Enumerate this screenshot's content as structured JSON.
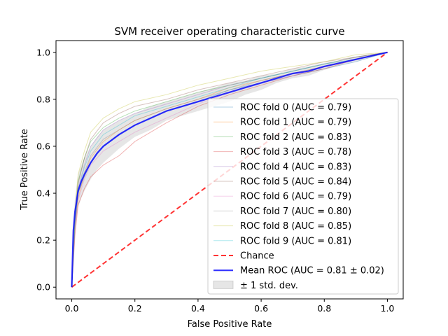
{
  "chart_data": {
    "type": "line",
    "title": "SVM receiver operating characteristic curve",
    "xlabel": "False Positive Rate",
    "ylabel": "True Positive Rate",
    "xlim": [
      -0.05,
      1.05
    ],
    "ylim": [
      -0.05,
      1.05
    ],
    "xticks": [
      "0.0",
      "0.2",
      "0.4",
      "0.6",
      "0.8",
      "1.0"
    ],
    "yticks": [
      "0.0",
      "0.2",
      "0.4",
      "0.6",
      "0.8",
      "1.0"
    ],
    "grid": false,
    "legend_position": "lower-right",
    "folds": [
      {
        "name": "ROC fold 0 (AUC = 0.79)",
        "color": "#1f77b4",
        "x": [
          0,
          0.01,
          0.02,
          0.04,
          0.06,
          0.1,
          0.15,
          0.2,
          0.3,
          0.4,
          0.5,
          0.6,
          0.7,
          0.8,
          0.9,
          1.0
        ],
        "y": [
          0,
          0.27,
          0.4,
          0.47,
          0.53,
          0.6,
          0.65,
          0.69,
          0.75,
          0.79,
          0.84,
          0.87,
          0.9,
          0.93,
          0.96,
          1.0
        ]
      },
      {
        "name": "ROC fold 1 (AUC = 0.79)",
        "color": "#ff7f0e",
        "x": [
          0,
          0.01,
          0.02,
          0.04,
          0.06,
          0.1,
          0.15,
          0.2,
          0.3,
          0.4,
          0.5,
          0.6,
          0.7,
          0.8,
          0.9,
          1.0
        ],
        "y": [
          0,
          0.25,
          0.38,
          0.48,
          0.55,
          0.62,
          0.67,
          0.71,
          0.76,
          0.8,
          0.85,
          0.88,
          0.91,
          0.94,
          0.97,
          1.0
        ]
      },
      {
        "name": "ROC fold 2 (AUC = 0.83)",
        "color": "#2ca02c",
        "x": [
          0,
          0.01,
          0.02,
          0.04,
          0.06,
          0.1,
          0.15,
          0.2,
          0.3,
          0.4,
          0.5,
          0.6,
          0.7,
          0.8,
          0.9,
          1.0
        ],
        "y": [
          0,
          0.3,
          0.45,
          0.55,
          0.62,
          0.68,
          0.72,
          0.75,
          0.79,
          0.83,
          0.86,
          0.89,
          0.92,
          0.95,
          0.98,
          1.0
        ]
      },
      {
        "name": "ROC fold 3 (AUC = 0.78)",
        "color": "#d62728",
        "x": [
          0,
          0.01,
          0.02,
          0.04,
          0.06,
          0.1,
          0.15,
          0.2,
          0.3,
          0.4,
          0.5,
          0.6,
          0.7,
          0.8,
          0.9,
          1.0
        ],
        "y": [
          0,
          0.22,
          0.35,
          0.42,
          0.47,
          0.52,
          0.56,
          0.62,
          0.7,
          0.77,
          0.82,
          0.86,
          0.9,
          0.93,
          0.97,
          1.0
        ]
      },
      {
        "name": "ROC fold 4 (AUC = 0.83)",
        "color": "#9467bd",
        "x": [
          0,
          0.01,
          0.02,
          0.04,
          0.06,
          0.1,
          0.15,
          0.2,
          0.3,
          0.4,
          0.5,
          0.6,
          0.7,
          0.8,
          0.9,
          1.0
        ],
        "y": [
          0,
          0.28,
          0.42,
          0.52,
          0.6,
          0.67,
          0.71,
          0.74,
          0.78,
          0.82,
          0.86,
          0.89,
          0.92,
          0.95,
          0.98,
          1.0
        ]
      },
      {
        "name": "ROC fold 5 (AUC = 0.84)",
        "color": "#8c564b",
        "x": [
          0,
          0.01,
          0.02,
          0.04,
          0.06,
          0.1,
          0.15,
          0.2,
          0.3,
          0.4,
          0.5,
          0.6,
          0.7,
          0.8,
          0.9,
          1.0
        ],
        "y": [
          0,
          0.29,
          0.44,
          0.55,
          0.63,
          0.7,
          0.74,
          0.77,
          0.8,
          0.84,
          0.87,
          0.9,
          0.93,
          0.96,
          0.98,
          1.0
        ]
      },
      {
        "name": "ROC fold 6 (AUC = 0.79)",
        "color": "#e377c2",
        "x": [
          0,
          0.01,
          0.02,
          0.04,
          0.06,
          0.1,
          0.15,
          0.2,
          0.3,
          0.4,
          0.5,
          0.6,
          0.7,
          0.8,
          0.9,
          1.0
        ],
        "y": [
          0,
          0.24,
          0.37,
          0.46,
          0.52,
          0.58,
          0.62,
          0.66,
          0.72,
          0.78,
          0.83,
          0.87,
          0.9,
          0.94,
          0.97,
          1.0
        ]
      },
      {
        "name": "ROC fold 7 (AUC = 0.80)",
        "color": "#7f7f7f",
        "x": [
          0,
          0.01,
          0.02,
          0.04,
          0.06,
          0.1,
          0.15,
          0.2,
          0.3,
          0.4,
          0.5,
          0.6,
          0.7,
          0.8,
          0.9,
          1.0
        ],
        "y": [
          0,
          0.26,
          0.4,
          0.49,
          0.56,
          0.63,
          0.67,
          0.71,
          0.76,
          0.8,
          0.84,
          0.88,
          0.91,
          0.94,
          0.97,
          1.0
        ]
      },
      {
        "name": "ROC fold 8 (AUC = 0.85)",
        "color": "#bcbd22",
        "x": [
          0,
          0.01,
          0.02,
          0.04,
          0.06,
          0.1,
          0.15,
          0.2,
          0.3,
          0.4,
          0.5,
          0.6,
          0.7,
          0.8,
          0.9,
          1.0
        ],
        "y": [
          0,
          0.32,
          0.48,
          0.58,
          0.66,
          0.72,
          0.76,
          0.79,
          0.82,
          0.86,
          0.89,
          0.92,
          0.94,
          0.96,
          0.99,
          1.0
        ]
      },
      {
        "name": "ROC fold 9 (AUC = 0.81)",
        "color": "#17becf",
        "x": [
          0,
          0.01,
          0.02,
          0.04,
          0.06,
          0.1,
          0.15,
          0.2,
          0.3,
          0.4,
          0.5,
          0.6,
          0.7,
          0.8,
          0.9,
          1.0
        ],
        "y": [
          0,
          0.27,
          0.41,
          0.51,
          0.58,
          0.65,
          0.69,
          0.73,
          0.77,
          0.81,
          0.85,
          0.89,
          0.92,
          0.95,
          0.97,
          1.0
        ]
      }
    ],
    "chance": {
      "name": "Chance",
      "color": "#ff0000",
      "x": [
        0,
        1
      ],
      "y": [
        0,
        1
      ]
    },
    "mean_roc": {
      "name": "Mean ROC (AUC = 0.81 ± 0.02)",
      "color": "#0000ff",
      "x": [
        0,
        0.005,
        0.01,
        0.02,
        0.03,
        0.04,
        0.06,
        0.08,
        0.1,
        0.15,
        0.2,
        0.25,
        0.3,
        0.35,
        0.4,
        0.45,
        0.5,
        0.55,
        0.6,
        0.65,
        0.7,
        0.75,
        0.8,
        0.85,
        0.9,
        0.95,
        1.0
      ],
      "y": [
        0,
        0.24,
        0.32,
        0.41,
        0.45,
        0.48,
        0.53,
        0.57,
        0.6,
        0.65,
        0.69,
        0.72,
        0.75,
        0.77,
        0.79,
        0.81,
        0.83,
        0.85,
        0.87,
        0.89,
        0.91,
        0.92,
        0.94,
        0.955,
        0.97,
        0.985,
        1.0
      ]
    },
    "std_band": {
      "name": "± 1 std. dev.",
      "color": "#808080",
      "upper": [
        0,
        0.28,
        0.38,
        0.48,
        0.52,
        0.55,
        0.6,
        0.64,
        0.67,
        0.71,
        0.74,
        0.77,
        0.79,
        0.81,
        0.83,
        0.85,
        0.87,
        0.88,
        0.9,
        0.91,
        0.93,
        0.94,
        0.955,
        0.965,
        0.98,
        0.99,
        1.0
      ],
      "lower": [
        0,
        0.2,
        0.26,
        0.34,
        0.38,
        0.41,
        0.46,
        0.5,
        0.53,
        0.59,
        0.64,
        0.67,
        0.71,
        0.73,
        0.75,
        0.77,
        0.79,
        0.82,
        0.84,
        0.87,
        0.89,
        0.9,
        0.925,
        0.945,
        0.96,
        0.98,
        1.0
      ]
    }
  }
}
